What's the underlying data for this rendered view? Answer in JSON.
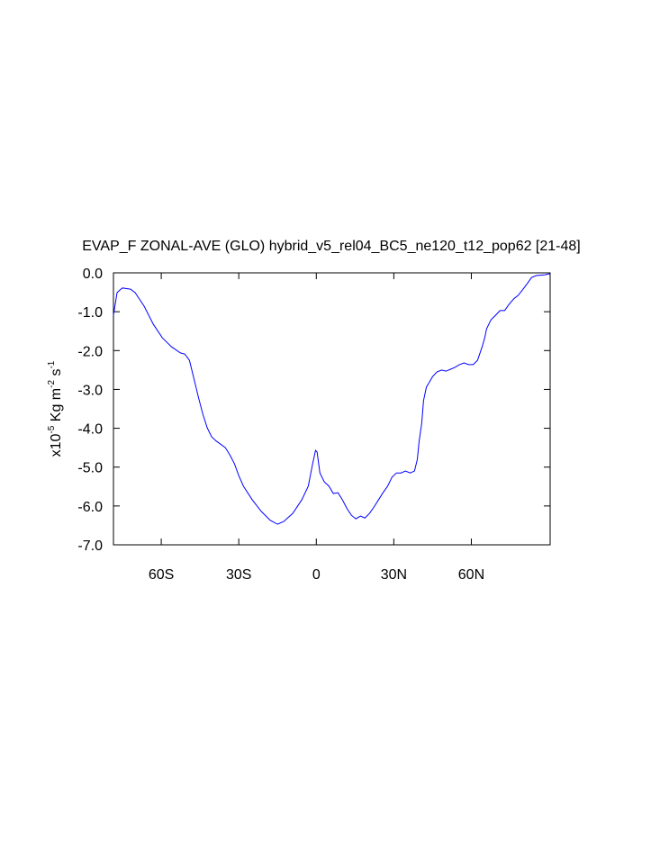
{
  "chart_data": {
    "type": "line",
    "title": "EVAP_F ZONAL-AVE (GLO) hybrid_v5_rel04_BC5_ne120_t12_pop62 [21-48]",
    "ylabel": [
      "x10",
      "-5",
      " Kg m",
      "-2",
      " s",
      "-1"
    ],
    "xlim": [
      -78.5,
      90.5
    ],
    "ylim": [
      -7,
      0
    ],
    "xticks": [
      {
        "value": -60,
        "label": "60S"
      },
      {
        "value": -30,
        "label": "30S"
      },
      0,
      {
        "value": 30,
        "label": "30N"
      },
      {
        "value": 60,
        "label": "60N"
      }
    ],
    "yticks": [
      {
        "value": 0,
        "label": "0.0"
      },
      {
        "value": -1,
        "label": "-1.0"
      },
      {
        "value": -2,
        "label": "-2.0"
      },
      {
        "value": -3,
        "label": "-3.0"
      },
      {
        "value": -4,
        "label": "-4.0"
      },
      {
        "value": -5,
        "label": "-5.0"
      },
      {
        "value": -6,
        "label": "-6.0"
      },
      {
        "value": -7,
        "label": "-7.0"
      }
    ],
    "series": [
      {
        "color": "#0000ff",
        "x": [
          -78.5,
          -77.1,
          -76.0,
          -75.0,
          -71.9,
          -70.1,
          -66.6,
          -63.1,
          -59.6,
          -56.1,
          -52.6,
          -50.9,
          -49.1,
          -47.4,
          -45.7,
          -43.9,
          -42.2,
          -40.5,
          -38.7,
          -35.2,
          -33.5,
          -31.7,
          -30.0,
          -28.2,
          -24.8,
          -21.3,
          -17.8,
          -15.0,
          -12.6,
          -9.1,
          -5.6,
          -3.1,
          -1.4,
          -0.3,
          0.3,
          1.4,
          3.1,
          4.9,
          6.6,
          8.4,
          10.1,
          11.9,
          13.6,
          15.3,
          17.1,
          18.8,
          20.6,
          22.3,
          24.1,
          25.8,
          27.6,
          29.3,
          31.0,
          32.8,
          34.5,
          36.3,
          38.0,
          39.1,
          39.8,
          40.8,
          41.5,
          42.6,
          43.6,
          45.0,
          46.7,
          48.5,
          50.2,
          52.0,
          53.7,
          55.5,
          57.2,
          58.9,
          60.7,
          62.4,
          64.2,
          65.2,
          65.9,
          67.6,
          69.4,
          71.1,
          72.9,
          74.6,
          76.4,
          78.1,
          79.8,
          81.6,
          83.3,
          85.1,
          88.6,
          90.5
        ],
        "values": [
          -1.09,
          -0.51,
          -0.44,
          -0.39,
          -0.42,
          -0.51,
          -0.86,
          -1.32,
          -1.67,
          -1.9,
          -2.06,
          -2.09,
          -2.25,
          -2.71,
          -3.18,
          -3.64,
          -3.99,
          -4.22,
          -4.33,
          -4.5,
          -4.68,
          -4.91,
          -5.22,
          -5.49,
          -5.84,
          -6.14,
          -6.37,
          -6.47,
          -6.4,
          -6.19,
          -5.84,
          -5.49,
          -4.91,
          -4.57,
          -4.61,
          -5.15,
          -5.38,
          -5.49,
          -5.68,
          -5.66,
          -5.84,
          -6.07,
          -6.24,
          -6.33,
          -6.26,
          -6.31,
          -6.19,
          -6.03,
          -5.84,
          -5.66,
          -5.49,
          -5.26,
          -5.15,
          -5.15,
          -5.1,
          -5.15,
          -5.1,
          -4.8,
          -4.33,
          -3.87,
          -3.29,
          -2.94,
          -2.83,
          -2.67,
          -2.55,
          -2.5,
          -2.53,
          -2.48,
          -2.43,
          -2.36,
          -2.32,
          -2.36,
          -2.36,
          -2.25,
          -1.9,
          -1.67,
          -1.44,
          -1.21,
          -1.09,
          -0.97,
          -0.97,
          -0.81,
          -0.67,
          -0.58,
          -0.44,
          -0.28,
          -0.12,
          -0.07,
          -0.05,
          -0.02
        ]
      }
    ]
  }
}
